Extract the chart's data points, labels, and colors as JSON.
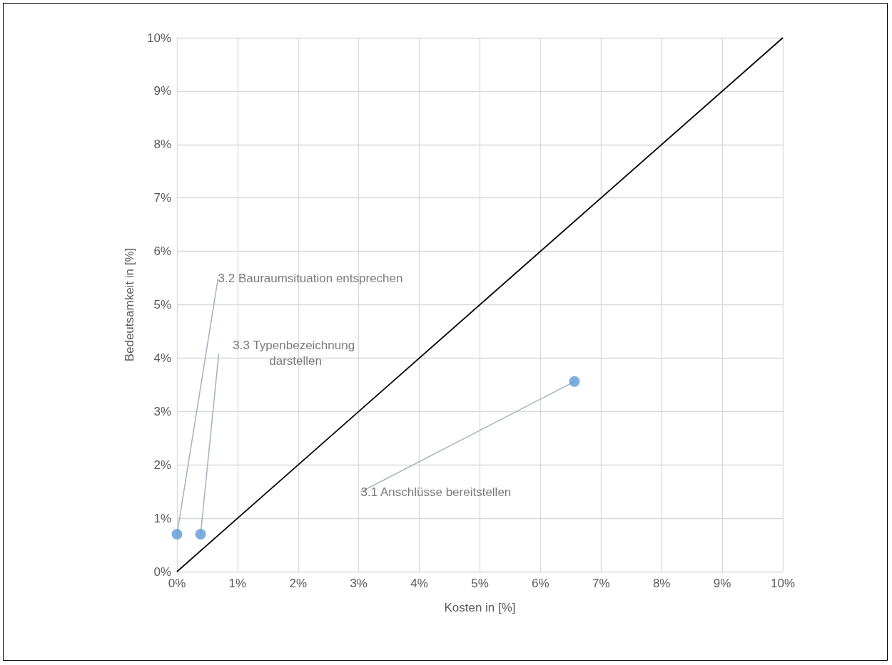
{
  "chart_data": {
    "type": "scatter",
    "xlabel": "Kosten in [%]",
    "ylabel": "Bedeutsamkeit in [%]",
    "series": [
      {
        "color": "#5b9bd5",
        "marker": "circle",
        "x": [
          0,
          0.39,
          6.56
        ],
        "values": [
          0.7,
          0.7,
          3.56
        ]
      },
      {
        "type": "line",
        "color": "#000000",
        "marker": "none",
        "line_style": "solid",
        "x": [
          0,
          10
        ],
        "values": [
          0,
          10
        ]
      }
    ],
    "annotations": [
      {
        "text": "3.2 Bauraumsituation entsprechen",
        "x": 0,
        "y": 0.7
      },
      {
        "text": "3.3 Typenbezeichnung darstellen",
        "x": 0.39,
        "y": 0.7
      },
      {
        "text": "3.1 Anschlüsse bereitstellen",
        "x": 6.56,
        "y": 3.56
      }
    ],
    "xlim": [
      0,
      10
    ],
    "ylim": [
      0,
      10
    ],
    "xticks": [
      {
        "value": 0,
        "label": "0%"
      },
      {
        "value": 1,
        "label": "1%"
      },
      {
        "value": 2,
        "label": "2%"
      },
      {
        "value": 3,
        "label": "3%"
      },
      {
        "value": 4,
        "label": "4%"
      },
      {
        "value": 5,
        "label": "5%"
      },
      {
        "value": 6,
        "label": "6%"
      },
      {
        "value": 7,
        "label": "7%"
      },
      {
        "value": 8,
        "label": "8%"
      },
      {
        "value": 9,
        "label": "9%"
      },
      {
        "value": 10,
        "label": "10%"
      }
    ],
    "yticks": [
      {
        "value": 0,
        "label": "0%"
      },
      {
        "value": 1,
        "label": "1%"
      },
      {
        "value": 2,
        "label": "2%"
      },
      {
        "value": 3,
        "label": "3%"
      },
      {
        "value": 4,
        "label": "4%"
      },
      {
        "value": 5,
        "label": "5%"
      },
      {
        "value": 6,
        "label": "6%"
      },
      {
        "value": 7,
        "label": "7%"
      },
      {
        "value": 8,
        "label": "8%"
      },
      {
        "value": 9,
        "label": "9%"
      },
      {
        "value": 10,
        "label": "10%"
      }
    ],
    "grid": true
  }
}
